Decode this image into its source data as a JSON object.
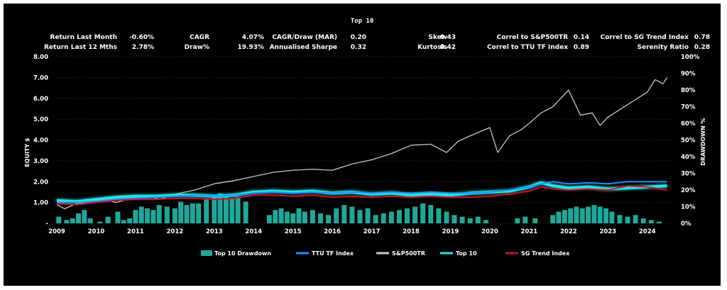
{
  "title": "Top 10",
  "stats": {
    "row1": [
      {
        "label": "Return Last Month",
        "value": "-0.60%"
      },
      {
        "label": "CAGR",
        "value": "4.07%"
      },
      {
        "label": "CAGR/Draw (MAR)",
        "value": "0.20"
      },
      {
        "label": "Skew",
        "value": "0.43"
      },
      {
        "label": "Correl to S&P500TR",
        "value": "0.14"
      },
      {
        "label": "Correl to SG Trend Index",
        "value": "0.78"
      }
    ],
    "row2": [
      {
        "label": "Return Last 12 Mths",
        "value": "2.78%"
      },
      {
        "label": "Draw%",
        "value": "19.93%"
      },
      {
        "label": "Annualised Sharpe",
        "value": "0.32"
      },
      {
        "label": "Kurtosis",
        "value": "0.42"
      },
      {
        "label": "Correl to TTU TF Index",
        "value": "0.89"
      },
      {
        "label": "Serenity Ratio",
        "value": "0.28"
      }
    ]
  },
  "chart_data": {
    "type": "line",
    "title": "Top 10",
    "ylabel": "EQUITY $",
    "y2label": "DRAWDOWN %",
    "ylim": [
      0,
      8
    ],
    "y2lim": [
      0,
      100
    ],
    "yticks": [
      "-",
      "1.00",
      "2.00",
      "3.00",
      "4.00",
      "5.00",
      "6.00",
      "7.00",
      "8.00"
    ],
    "y2ticks": [
      "0%",
      "10%",
      "20%",
      "30%",
      "40%",
      "50%",
      "60%",
      "70%",
      "80%",
      "90%",
      "100%"
    ],
    "xlim": [
      2009,
      2024.6
    ],
    "xticks": [
      "2009",
      "2010",
      "2011",
      "2012",
      "2013",
      "2014",
      "2015",
      "2016",
      "2017",
      "2018",
      "2019",
      "2020",
      "2021",
      "2022",
      "2023",
      "2024"
    ],
    "grid": true,
    "legend_position": "bottom",
    "legend": [
      "Top 10 Drawdown",
      "TTU TF Index",
      "S&P500TR",
      "Top 10",
      "SG Trend Index"
    ],
    "colors": {
      "drawdown": "#1fa89a",
      "ttu": "#1e90ff",
      "sp500": "#c8c8c8",
      "top10": "#22e5e0",
      "sg": "#d0102a"
    },
    "series": [
      {
        "name": "S&P500TR",
        "x": [
          2009.0,
          2009.2,
          2009.5,
          2010.0,
          2010.3,
          2010.5,
          2011.0,
          2011.3,
          2011.6,
          2012.0,
          2012.5,
          2013.0,
          2013.5,
          2014.0,
          2014.5,
          2015.0,
          2015.5,
          2016.0,
          2016.5,
          2017.0,
          2017.5,
          2018.0,
          2018.5,
          2018.9,
          2019.2,
          2019.5,
          2020.0,
          2020.2,
          2020.5,
          2020.8,
          2021.0,
          2021.3,
          2021.6,
          2021.8,
          2022.0,
          2022.3,
          2022.6,
          2022.8,
          2023.0,
          2023.5,
          2024.0,
          2024.2,
          2024.4,
          2024.5
        ],
        "y": [
          0.9,
          0.7,
          0.95,
          1.05,
          1.1,
          1.0,
          1.25,
          1.35,
          1.15,
          1.4,
          1.6,
          1.9,
          2.05,
          2.25,
          2.45,
          2.55,
          2.6,
          2.55,
          2.85,
          3.05,
          3.35,
          3.75,
          3.8,
          3.4,
          3.95,
          4.2,
          4.6,
          3.4,
          4.2,
          4.5,
          4.8,
          5.3,
          5.6,
          6.0,
          6.4,
          5.2,
          5.3,
          4.7,
          5.1,
          5.7,
          6.3,
          6.9,
          6.7,
          7.0
        ]
      },
      {
        "name": "TTU TF Index",
        "x": [
          2009.0,
          2009.5,
          2010.0,
          2010.5,
          2011.0,
          2011.5,
          2012.0,
          2012.5,
          2013.0,
          2013.5,
          2014.0,
          2014.5,
          2015.0,
          2015.5,
          2016.0,
          2016.5,
          2017.0,
          2017.5,
          2018.0,
          2018.5,
          2019.0,
          2019.5,
          2020.0,
          2020.5,
          2021.0,
          2021.3,
          2021.6,
          2022.0,
          2022.5,
          2023.0,
          2023.5,
          2024.0,
          2024.5
        ],
        "y": [
          1.0,
          1.0,
          1.05,
          1.15,
          1.2,
          1.25,
          1.3,
          1.35,
          1.3,
          1.35,
          1.45,
          1.5,
          1.45,
          1.5,
          1.45,
          1.5,
          1.45,
          1.5,
          1.45,
          1.5,
          1.45,
          1.45,
          1.5,
          1.6,
          1.75,
          1.9,
          2.0,
          1.9,
          1.95,
          1.9,
          2.0,
          2.0,
          2.0
        ]
      },
      {
        "name": "Top 10",
        "x": [
          2009.0,
          2009.5,
          2010.0,
          2010.5,
          2011.0,
          2011.5,
          2012.0,
          2012.5,
          2013.0,
          2013.5,
          2014.0,
          2014.5,
          2015.0,
          2015.5,
          2016.0,
          2016.5,
          2017.0,
          2017.5,
          2018.0,
          2018.5,
          2019.0,
          2019.5,
          2020.0,
          2020.5,
          2021.0,
          2021.3,
          2021.6,
          2022.0,
          2022.5,
          2023.0,
          2023.5,
          2024.0,
          2024.5
        ],
        "y": [
          1.1,
          1.05,
          1.15,
          1.25,
          1.3,
          1.3,
          1.35,
          1.35,
          1.3,
          1.35,
          1.5,
          1.55,
          1.5,
          1.55,
          1.45,
          1.5,
          1.4,
          1.45,
          1.35,
          1.4,
          1.35,
          1.45,
          1.5,
          1.55,
          1.75,
          1.95,
          1.8,
          1.7,
          1.75,
          1.65,
          1.7,
          1.75,
          1.8
        ]
      },
      {
        "name": "SG Trend Index",
        "x": [
          2009.0,
          2009.5,
          2010.0,
          2010.5,
          2011.0,
          2011.5,
          2012.0,
          2012.5,
          2013.0,
          2013.5,
          2014.0,
          2014.5,
          2015.0,
          2015.5,
          2016.0,
          2016.5,
          2017.0,
          2017.5,
          2018.0,
          2018.5,
          2019.0,
          2019.5,
          2020.0,
          2020.5,
          2021.0,
          2021.3,
          2021.6,
          2022.0,
          2022.5,
          2023.0,
          2023.5,
          2024.0,
          2024.5
        ],
        "y": [
          0.95,
          0.9,
          1.0,
          1.1,
          1.15,
          1.15,
          1.2,
          1.2,
          1.15,
          1.2,
          1.35,
          1.35,
          1.3,
          1.35,
          1.25,
          1.3,
          1.25,
          1.3,
          1.25,
          1.3,
          1.25,
          1.25,
          1.3,
          1.4,
          1.55,
          1.75,
          1.65,
          1.6,
          1.65,
          1.6,
          1.8,
          1.75,
          1.6
        ]
      },
      {
        "name": "Top 10 Drawdown",
        "unit": "%",
        "x": [
          2009.05,
          2009.25,
          2009.4,
          2009.55,
          2009.7,
          2009.85,
          2010.1,
          2010.3,
          2010.55,
          2010.7,
          2010.85,
          2011.0,
          2011.15,
          2011.3,
          2011.45,
          2011.6,
          2011.8,
          2012.0,
          2012.15,
          2012.3,
          2012.45,
          2012.6,
          2012.8,
          2013.0,
          2013.15,
          2013.3,
          2013.45,
          2013.6,
          2013.8,
          2014.4,
          2014.55,
          2014.7,
          2014.85,
          2015.0,
          2015.15,
          2015.3,
          2015.5,
          2015.7,
          2015.9,
          2016.1,
          2016.3,
          2016.5,
          2016.7,
          2016.9,
          2017.1,
          2017.3,
          2017.5,
          2017.7,
          2017.9,
          2018.1,
          2018.3,
          2018.5,
          2018.7,
          2018.9,
          2019.1,
          2019.3,
          2019.5,
          2019.7,
          2019.9,
          2020.7,
          2020.9,
          2021.15,
          2021.6,
          2021.75,
          2021.9,
          2022.05,
          2022.2,
          2022.35,
          2022.5,
          2022.65,
          2022.8,
          2022.95,
          2023.1,
          2023.3,
          2023.5,
          2023.7,
          2023.9,
          2024.1,
          2024.3
        ],
        "y": [
          4,
          2,
          3,
          6,
          8,
          3,
          1,
          4,
          7,
          2,
          3,
          8,
          10,
          9,
          8,
          11,
          10,
          9,
          13,
          11,
          12,
          12,
          15,
          16,
          18,
          17,
          15,
          16,
          13,
          5,
          8,
          9,
          7,
          6,
          9,
          7,
          8,
          6,
          5,
          9,
          11,
          10,
          8,
          9,
          5,
          6,
          7,
          8,
          9,
          10,
          12,
          11,
          9,
          7,
          5,
          4,
          3,
          4,
          2,
          3,
          4,
          3,
          5,
          7,
          8,
          9,
          10,
          9,
          10,
          11,
          10,
          9,
          7,
          5,
          4,
          5,
          3,
          2,
          1
        ]
      }
    ]
  },
  "legend_items": [
    {
      "label": "Top 10 Drawdown",
      "kind": "bar",
      "color": "#1fa89a"
    },
    {
      "label": "TTU TF Index",
      "kind": "line",
      "color": "#1e90ff"
    },
    {
      "label": "S&P500TR",
      "kind": "line",
      "color": "#c8c8c8"
    },
    {
      "label": "Top 10",
      "kind": "line",
      "color": "#22e5e0"
    },
    {
      "label": "SG Trend Index",
      "kind": "line",
      "color": "#d0102a"
    }
  ]
}
